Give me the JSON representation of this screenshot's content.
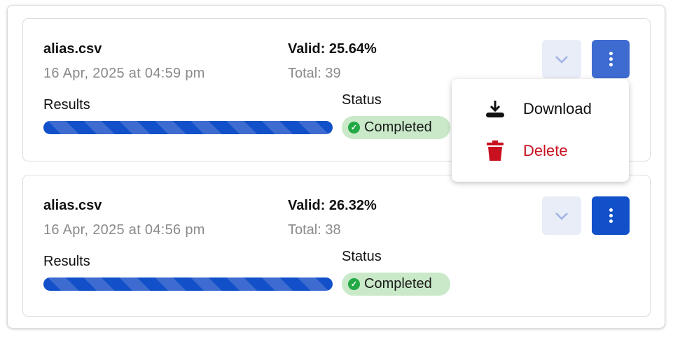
{
  "uploads": [
    {
      "filename": "alias.csv",
      "date": "16 Apr, 2025 at 04:59 pm",
      "valid": "Valid: 25.64%",
      "total": "Total: 39",
      "results_label": "Results",
      "results_progress": 100,
      "status_label": "Status",
      "status": "Completed",
      "menu_open": true
    },
    {
      "filename": "alias.csv",
      "date": "16 Apr, 2025 at 04:56 pm",
      "valid": "Valid: 26.32%",
      "total": "Total: 38",
      "results_label": "Results",
      "results_progress": 100,
      "status_label": "Status",
      "status": "Completed",
      "menu_open": false
    }
  ],
  "menu": {
    "download": "Download",
    "delete": "Delete"
  },
  "colors": {
    "primary": "#1150c8",
    "success": "#22a844",
    "status_bg": "#c9e9c9",
    "danger": "#c8101e"
  }
}
